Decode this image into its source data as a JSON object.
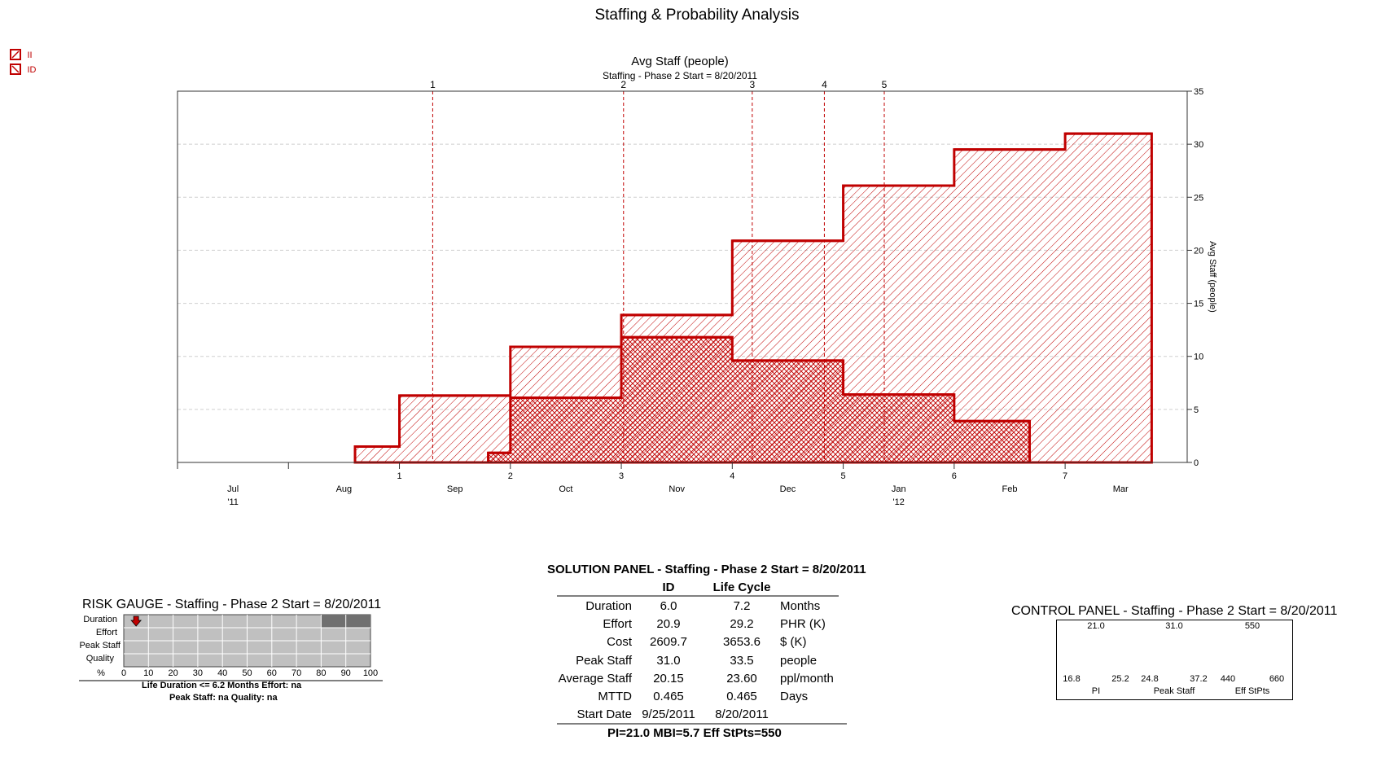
{
  "page_title": "Staffing & Probability Analysis",
  "legend": [
    {
      "label": "II",
      "color": "#c00000"
    },
    {
      "label": "ID",
      "color": "#c00000"
    }
  ],
  "chart_data": {
    "type": "area",
    "title": "Avg Staff (people)",
    "subtitle": "Staffing - Phase 2 Start = 8/20/2011",
    "ylabel": "Avg Staff (people)",
    "ylim": [
      0,
      35
    ],
    "y_ticks": [
      "0",
      "5",
      "10",
      "15",
      "20",
      "25",
      "30",
      "35"
    ],
    "x_range_months": [
      0,
      9.1
    ],
    "month_labels": [
      {
        "label": "Jul",
        "year": "'11",
        "x": 0.5
      },
      {
        "label": "Aug",
        "year": "",
        "x": 1.5
      },
      {
        "label": "Sep",
        "year": "",
        "x": 2.5
      },
      {
        "label": "Oct",
        "year": "",
        "x": 3.5
      },
      {
        "label": "Nov",
        "year": "",
        "x": 4.5
      },
      {
        "label": "Dec",
        "year": "",
        "x": 5.5
      },
      {
        "label": "Jan",
        "year": "'12",
        "x": 6.5
      },
      {
        "label": "Feb",
        "year": "",
        "x": 7.5
      },
      {
        "label": "Mar",
        "year": "",
        "x": 8.5
      }
    ],
    "month_ticks_x": [
      0,
      1
    ],
    "phase_month_ticks": [
      {
        "label": "1",
        "x": 2.0
      },
      {
        "label": "2",
        "x": 3.0
      },
      {
        "label": "3",
        "x": 4.0
      },
      {
        "label": "4",
        "x": 5.0
      },
      {
        "label": "5",
        "x": 6.0
      },
      {
        "label": "6",
        "x": 7.0
      },
      {
        "label": "7",
        "x": 8.0
      }
    ],
    "milestones": [
      {
        "label": "1",
        "x": 2.3
      },
      {
        "label": "2",
        "x": 4.02
      },
      {
        "label": "3",
        "x": 5.18
      },
      {
        "label": "4",
        "x": 5.83
      },
      {
        "label": "5",
        "x": 6.37
      }
    ],
    "series": [
      {
        "name": "II",
        "color": "#c00000",
        "hatch": "single",
        "steps": [
          {
            "x0": 1.6,
            "x1": 2.0,
            "y": 1.5
          },
          {
            "x0": 2.0,
            "x1": 3.0,
            "y": 6.3
          },
          {
            "x0": 3.0,
            "x1": 4.0,
            "y": 10.9
          },
          {
            "x0": 4.0,
            "x1": 5.0,
            "y": 13.9
          },
          {
            "x0": 5.0,
            "x1": 6.0,
            "y": 20.9
          },
          {
            "x0": 6.0,
            "x1": 7.0,
            "y": 26.1
          },
          {
            "x0": 7.0,
            "x1": 8.0,
            "y": 29.5
          },
          {
            "x0": 8.0,
            "x1": 8.78,
            "y": 31.0
          }
        ]
      },
      {
        "name": "ID",
        "color": "#c00000",
        "hatch": "cross",
        "steps": [
          {
            "x0": 2.8,
            "x1": 3.0,
            "y": 0.9
          },
          {
            "x0": 3.0,
            "x1": 4.0,
            "y": 6.1
          },
          {
            "x0": 4.0,
            "x1": 5.0,
            "y": 11.8
          },
          {
            "x0": 5.0,
            "x1": 6.0,
            "y": 9.6
          },
          {
            "x0": 6.0,
            "x1": 7.0,
            "y": 6.4
          },
          {
            "x0": 7.0,
            "x1": 7.68,
            "y": 3.9
          }
        ]
      }
    ]
  },
  "risk_gauge": {
    "title": "RISK GAUGE - Staffing - Phase 2 Start = 8/20/2011",
    "rows": [
      "Duration",
      "Effort",
      "Peak Staff",
      "Quality"
    ],
    "x_labels": [
      "%",
      "0",
      "10",
      "20",
      "30",
      "40",
      "50",
      "60",
      "70",
      "80",
      "90",
      "100"
    ],
    "marker_percent": 5,
    "shaded_from_percent": 80,
    "footer_line1": "Life Duration  <=  6.2 Months   Effort:  na",
    "footer_line2": "Peak Staff:  na   Quality:  na"
  },
  "solution_panel": {
    "title": "SOLUTION PANEL - Staffing - Phase 2 Start = 8/20/2011",
    "col_id": "ID",
    "col_lc": "Life Cycle",
    "rows": [
      {
        "label": "Duration",
        "id": "6.0",
        "lc": "7.2",
        "unit": "Months"
      },
      {
        "label": "Effort",
        "id": "20.9",
        "lc": "29.2",
        "unit": "PHR (K)"
      },
      {
        "label": "Cost",
        "id": "2609.7",
        "lc": "3653.6",
        "unit": "$ (K)"
      },
      {
        "label": "Peak Staff",
        "id": "31.0",
        "lc": "33.5",
        "unit": "people"
      },
      {
        "label": "Average Staff",
        "id": "20.15",
        "lc": "23.60",
        "unit": "ppl/month"
      },
      {
        "label": "MTTD",
        "id": "0.465",
        "lc": "0.465",
        "unit": "Days"
      },
      {
        "label": "Start Date",
        "id": "9/25/2011",
        "lc": "8/20/2011",
        "unit": ""
      }
    ],
    "footer": "PI=21.0    MBI=5.7    Eff StPts=550"
  },
  "control_panel": {
    "title": "CONTROL PANEL - Staffing - Phase 2 Start = 8/20/2011",
    "gauges": [
      {
        "name": "PI",
        "value": "21.0",
        "min": "16.8",
        "max": "25.2",
        "fraction": 0.5
      },
      {
        "name": "Peak Staff",
        "value": "31.0",
        "min": "24.8",
        "max": "37.2",
        "fraction": 0.5
      },
      {
        "name": "Eff StPts",
        "value": "550",
        "min": "440",
        "max": "660",
        "fraction": 0.5
      }
    ]
  }
}
